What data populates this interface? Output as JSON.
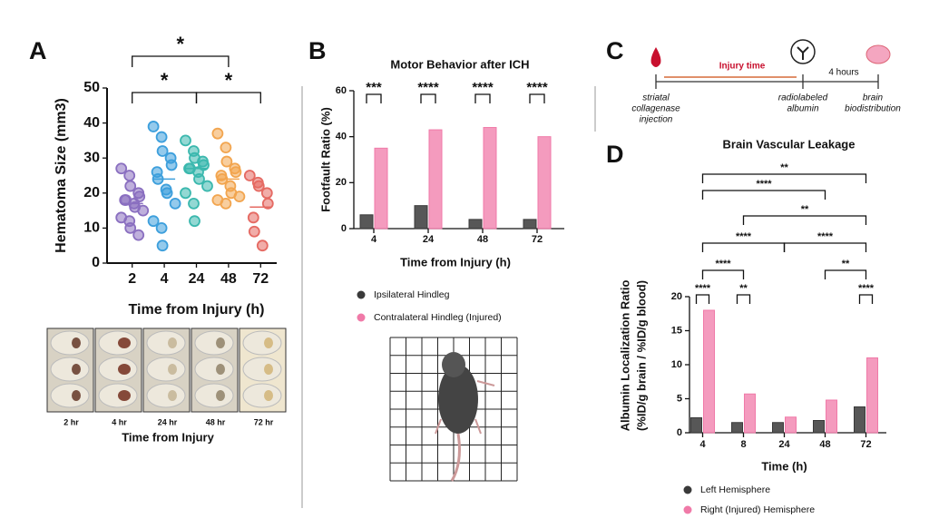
{
  "panels": {
    "a": "A",
    "b": "B",
    "c": "C",
    "d": "D"
  },
  "chart_data": [
    {
      "type": "scatter",
      "ylabel": "Hematoma Size (mm3)",
      "xlabel": "Time from Injury (h)",
      "categories": [
        "2",
        "4",
        "24",
        "48",
        "72"
      ],
      "colors": [
        "#8a6fc0",
        "#3d9fdc",
        "#3bb8ae",
        "#f2a54f",
        "#e56a63"
      ],
      "points": [
        [
          27,
          25,
          22,
          20,
          19,
          18,
          18,
          17,
          16,
          15,
          13,
          12,
          10,
          8
        ],
        [
          39,
          36,
          32,
          30,
          28,
          26,
          24,
          21,
          20,
          17,
          12,
          10,
          5
        ],
        [
          35,
          32,
          30,
          29,
          28,
          27,
          27,
          26,
          24,
          22,
          20,
          17,
          12
        ],
        [
          37,
          33,
          29,
          27,
          26,
          25,
          24,
          22,
          20,
          19,
          18,
          17
        ],
        [
          25,
          23,
          22,
          20,
          17,
          13,
          9,
          5
        ]
      ],
      "means": [
        17,
        24,
        27,
        24,
        16
      ],
      "ylim": [
        0,
        50
      ],
      "yticks": [
        0,
        10,
        20,
        30,
        40,
        50
      ],
      "comparisons": [
        {
          "label": "*",
          "between": [
            "2",
            "48"
          ]
        },
        {
          "label": "*",
          "between": [
            "2",
            "24"
          ]
        },
        {
          "label": "*",
          "between": [
            "24",
            "72"
          ]
        }
      ]
    },
    {
      "type": "bar",
      "title": "Motor Behavior after ICH",
      "ylabel": "Footfault Ratio (%)",
      "xlabel": "Time from Injury (h)",
      "categories": [
        "4",
        "24",
        "48",
        "72"
      ],
      "series": [
        {
          "name": "Ipsilateral Hindleg",
          "color": "#3a3a3a",
          "values": [
            6,
            10,
            4,
            4
          ]
        },
        {
          "name": "Contralateral Hindleg (Injured)",
          "color": "#f07aa8",
          "values": [
            35,
            43,
            44,
            40
          ]
        }
      ],
      "ylim": [
        0,
        60
      ],
      "yticks": [
        0,
        20,
        40,
        60
      ],
      "comparisons": [
        {
          "label": "***",
          "between": [
            "4",
            "4"
          ]
        },
        {
          "label": "****",
          "between": [
            "24",
            "24"
          ]
        },
        {
          "label": "****",
          "between": [
            "48",
            "48"
          ]
        },
        {
          "label": "****",
          "between": [
            "72",
            "72"
          ]
        }
      ]
    },
    {
      "type": "bar",
      "title": "Brain Vascular Leakage",
      "ylabel": [
        "Albumin Localization Ratio",
        "(%ID/g brain / %ID/g blood)"
      ],
      "xlabel": "Time (h)",
      "categories": [
        "4",
        "8",
        "24",
        "48",
        "72"
      ],
      "series": [
        {
          "name": "Left Hemisphere",
          "color": "#3a3a3a",
          "values": [
            2.2,
            1.5,
            1.5,
            1.8,
            3.8
          ]
        },
        {
          "name": "Right (Injured) Hemisphere",
          "color": "#f07aa8",
          "values": [
            18,
            5.7,
            2.3,
            4.8,
            11
          ]
        }
      ],
      "ylim": [
        0,
        20
      ],
      "yticks": [
        0,
        5,
        10,
        15,
        20
      ],
      "comparisons": [
        {
          "label": "**",
          "between": [
            "4",
            "72"
          ]
        },
        {
          "label": "****",
          "between": [
            "4",
            "48"
          ]
        },
        {
          "label": "**",
          "between": [
            "8",
            "72"
          ]
        },
        {
          "label": "****",
          "between": [
            "4",
            "24"
          ]
        },
        {
          "label": "****",
          "between": [
            "24",
            "72"
          ]
        },
        {
          "label": "****",
          "between": [
            "4",
            "8"
          ]
        },
        {
          "label": "**",
          "between": [
            "48",
            "72"
          ]
        },
        {
          "label": "****",
          "between": [
            "4",
            "4"
          ]
        },
        {
          "label": "**",
          "between": [
            "8",
            "8"
          ]
        },
        {
          "label": "****",
          "between": [
            "72",
            "72"
          ]
        }
      ]
    }
  ],
  "histology": {
    "labels": [
      "2 hr",
      "4 hr",
      "24 hr",
      "48 hr",
      "72 hr"
    ],
    "caption": "Time from Injury"
  },
  "timeline": {
    "injury": "Injury time",
    "interval": "4 hours",
    "steps": [
      [
        "striatal",
        "collagenase",
        "injection"
      ],
      [
        "radiolabeled",
        "albumin"
      ],
      [
        "brain",
        "biodistribution"
      ]
    ]
  }
}
